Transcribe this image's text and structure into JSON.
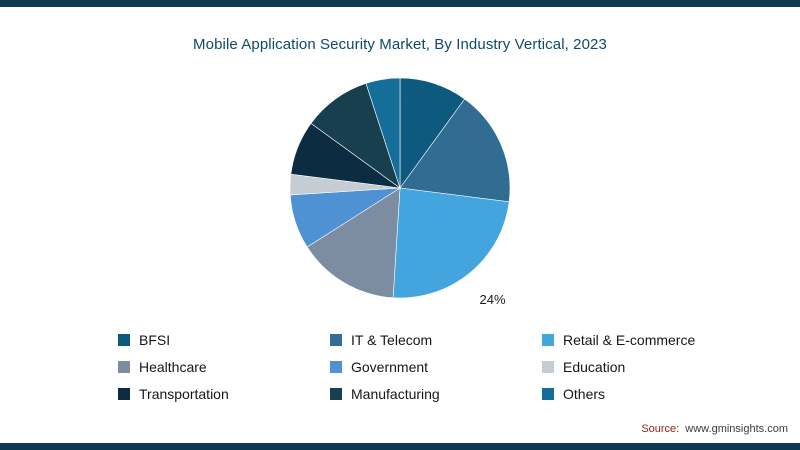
{
  "page": {
    "background": "#ffffff",
    "accent_bar_color": "#0d3a52",
    "title_color": "#0f4a66"
  },
  "header": {
    "title": "Mobile Application Security Market, By Industry Vertical, 2023"
  },
  "chart_data": {
    "type": "pie",
    "title": "Mobile Application Security Market, By Industry Vertical, 2023",
    "start_angle_deg": 0,
    "direction": "clockwise",
    "legend_position": "bottom",
    "visible_data_labels": [
      "24%"
    ],
    "slices": [
      {
        "label": "BFSI",
        "value": 10,
        "color": "#0e5a7e"
      },
      {
        "label": "IT & Telecom",
        "value": 17,
        "color": "#316d93"
      },
      {
        "label": "Retail & E-commerce",
        "value": 24,
        "color": "#44a4dd",
        "data_label": "24%"
      },
      {
        "label": "Healthcare",
        "value": 15,
        "color": "#7d8da1"
      },
      {
        "label": "Government",
        "value": 8,
        "color": "#4e92d4"
      },
      {
        "label": "Education",
        "value": 3,
        "color": "#c6ccd3"
      },
      {
        "label": "Transportation",
        "value": 8,
        "color": "#0c2c42"
      },
      {
        "label": "Manufacturing",
        "value": 10,
        "color": "#173f4e"
      },
      {
        "label": "Others",
        "value": 5,
        "color": "#156d99"
      }
    ]
  },
  "footer": {
    "source_label": "Source:",
    "source_value": "www.gminsights.com"
  }
}
